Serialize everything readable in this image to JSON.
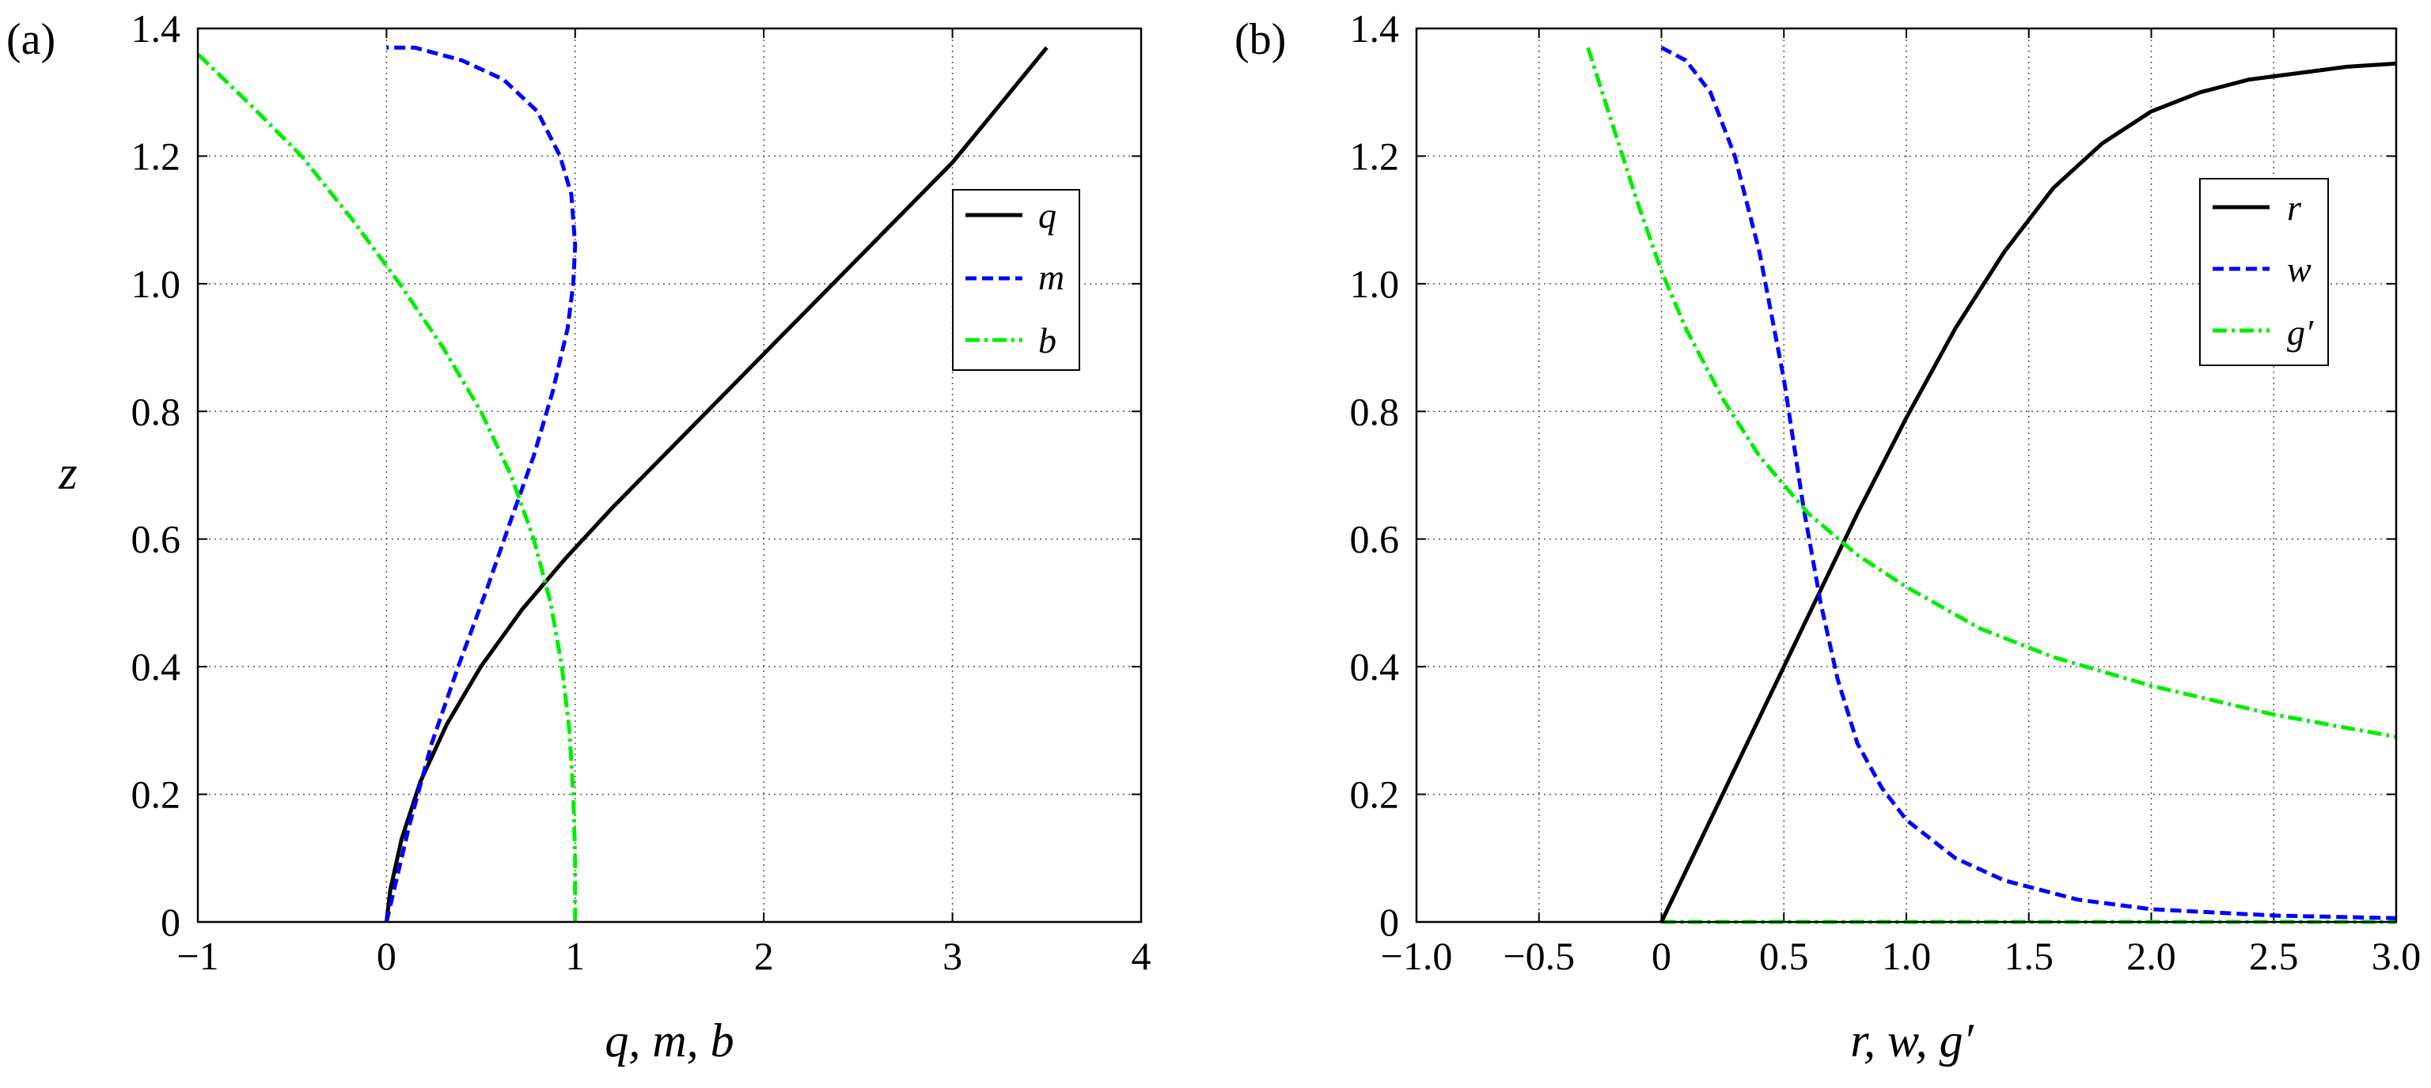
{
  "chart_data": [
    {
      "type": "line",
      "panel_label": "(a)",
      "xlabel": "q, m, b",
      "ylabel": "z",
      "xlim": [
        -1,
        4
      ],
      "ylim": [
        0,
        1.4
      ],
      "xticks": [
        -1,
        0,
        1,
        2,
        3,
        4
      ],
      "xtick_labels": [
        "−1",
        "0",
        "1",
        "2",
        "3",
        "4"
      ],
      "yticks": [
        0,
        0.2,
        0.4,
        0.6,
        0.8,
        1.0,
        1.2,
        1.4
      ],
      "ytick_labels": [
        "0",
        "0.2",
        "0.4",
        "0.6",
        "0.8",
        "1.0",
        "1.2",
        "1.4"
      ],
      "grid": true,
      "legend_position": "top-right",
      "series": [
        {
          "name": "q",
          "color": "#000000",
          "style": "solid",
          "x": [
            0,
            0.02,
            0.08,
            0.18,
            0.32,
            0.5,
            0.72,
            0.95,
            1.2,
            1.5,
            1.8,
            2.1,
            2.4,
            2.7,
            3.0,
            3.25,
            3.5
          ],
          "y": [
            0,
            0.05,
            0.13,
            0.22,
            0.31,
            0.4,
            0.49,
            0.57,
            0.65,
            0.74,
            0.83,
            0.92,
            1.01,
            1.1,
            1.19,
            1.28,
            1.37
          ]
        },
        {
          "name": "m",
          "color": "#0000ff",
          "style": "dashed",
          "x": [
            0,
            0.04,
            0.12,
            0.24,
            0.38,
            0.53,
            0.66,
            0.78,
            0.88,
            0.96,
            0.99,
            1.0,
            0.98,
            0.92,
            0.8,
            0.62,
            0.4,
            0.15,
            0.02,
            0
          ],
          "y": [
            0,
            0.05,
            0.15,
            0.28,
            0.4,
            0.52,
            0.63,
            0.73,
            0.83,
            0.93,
            1.0,
            1.06,
            1.14,
            1.2,
            1.27,
            1.32,
            1.35,
            1.37,
            1.37,
            1.37
          ]
        },
        {
          "name": "b",
          "color": "#00ee00",
          "style": "dashdot",
          "x": [
            1.0,
            1.0,
            0.99,
            0.97,
            0.93,
            0.87,
            0.78,
            0.66,
            0.5,
            0.3,
            0.07,
            -0.18,
            -0.45,
            -0.72,
            -1.0
          ],
          "y": [
            0,
            0.1,
            0.2,
            0.3,
            0.4,
            0.5,
            0.6,
            0.7,
            0.8,
            0.9,
            1.0,
            1.1,
            1.2,
            1.28,
            1.36
          ]
        }
      ]
    },
    {
      "type": "line",
      "panel_label": "(b)",
      "xlabel": "r, w, g′",
      "ylabel": "",
      "xlim": [
        -1.0,
        3.0
      ],
      "ylim": [
        0,
        1.4
      ],
      "xticks": [
        -1.0,
        -0.5,
        0,
        0.5,
        1.0,
        1.5,
        2.0,
        2.5,
        3.0
      ],
      "xtick_labels": [
        "−1.0",
        "−0.5",
        "0",
        "0.5",
        "1.0",
        "1.5",
        "2.0",
        "2.5",
        "3.0"
      ],
      "yticks": [
        0,
        0.2,
        0.4,
        0.6,
        0.8,
        1.0,
        1.2,
        1.4
      ],
      "ytick_labels": [
        "0",
        "0.2",
        "0.4",
        "0.6",
        "0.8",
        "1.0",
        "1.2",
        "1.4"
      ],
      "grid": true,
      "legend_position": "top-right",
      "series": [
        {
          "name": "r",
          "color": "#000000",
          "style": "solid",
          "x": [
            0,
            0.2,
            0.4,
            0.6,
            0.8,
            1.0,
            1.2,
            1.4,
            1.6,
            1.8,
            2.0,
            2.2,
            2.4,
            2.6,
            2.8,
            3.0
          ],
          "y": [
            0,
            0.16,
            0.32,
            0.48,
            0.64,
            0.79,
            0.93,
            1.05,
            1.15,
            1.22,
            1.27,
            1.3,
            1.32,
            1.33,
            1.34,
            1.345
          ]
        },
        {
          "name": "w",
          "color": "#0000ff",
          "style": "dashed",
          "x": [
            0,
            0.1,
            0.2,
            0.3,
            0.4,
            0.5,
            0.58,
            0.65,
            0.72,
            0.8,
            0.9,
            1.0,
            1.2,
            1.4,
            1.7,
            2.0,
            2.5,
            3.0
          ],
          "y": [
            1.37,
            1.35,
            1.3,
            1.2,
            1.05,
            0.85,
            0.65,
            0.5,
            0.38,
            0.28,
            0.21,
            0.16,
            0.1,
            0.065,
            0.035,
            0.02,
            0.01,
            0.006
          ]
        },
        {
          "name": "g′",
          "color": "#00ee00",
          "style": "dashdot",
          "x": [
            -0.3,
            -0.2,
            -0.1,
            0,
            0.1,
            0.25,
            0.4,
            0.6,
            0.8,
            1.0,
            1.3,
            1.6,
            2.0,
            2.5,
            3.0
          ],
          "y": [
            1.37,
            1.25,
            1.13,
            1.02,
            0.93,
            0.82,
            0.73,
            0.64,
            0.575,
            0.525,
            0.46,
            0.415,
            0.37,
            0.325,
            0.29
          ]
        }
      ],
      "baseline_series": {
        "color": "#00ee00",
        "style": "dashdot",
        "x": [
          0,
          3.0
        ],
        "y": [
          0,
          0
        ]
      }
    }
  ]
}
